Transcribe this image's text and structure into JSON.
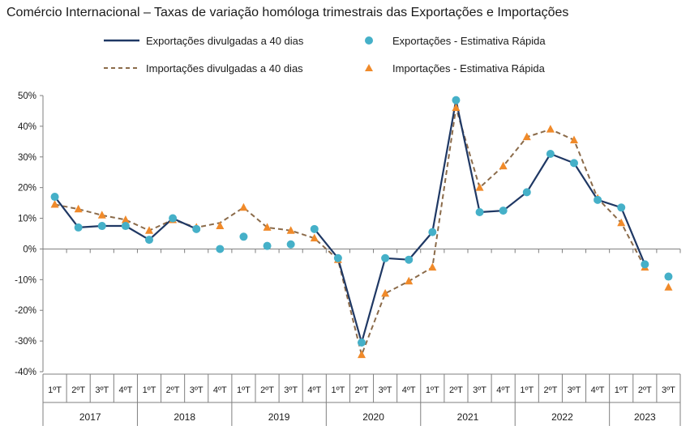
{
  "chart_data": {
    "type": "line",
    "title": "Comércio Internacional – Taxas de variação homóloga trimestrais das Exportações e Importações",
    "colors": {
      "exports_line": "#1f3864",
      "exports_marker": "#45b0c8",
      "imports_line": "#8b6b4a",
      "imports_marker": "#f08a2a"
    },
    "legend": {
      "placement": "top",
      "items": [
        {
          "key": "exp_line",
          "label": "Exportações divulgadas  a 40 dias"
        },
        {
          "key": "exp_est",
          "label": "Exportações - Estimativa Rápida"
        },
        {
          "key": "imp_line",
          "label": "Importações divulgadas a 40 dias"
        },
        {
          "key": "imp_est",
          "label": "Importações - Estimativa Rápida"
        }
      ]
    },
    "ylim": [
      -40,
      50
    ],
    "yticks": [
      {
        "value": 50,
        "label": "50%"
      },
      {
        "value": 40,
        "label": "40%"
      },
      {
        "value": 30,
        "label": "30%"
      },
      {
        "value": 20,
        "label": "20%"
      },
      {
        "value": 10,
        "label": "10%"
      },
      {
        "value": 0,
        "label": "0%"
      },
      {
        "value": -10,
        "label": "-10%"
      },
      {
        "value": -20,
        "label": "-20%"
      },
      {
        "value": -30,
        "label": "-30%"
      },
      {
        "value": -40,
        "label": "-40%"
      }
    ],
    "categories": [
      "1ºT",
      "2ºT",
      "3ºT",
      "4ºT",
      "1ºT",
      "2ºT",
      "3ºT",
      "4ºT",
      "1ºT",
      "2ºT",
      "3ºT",
      "4ºT",
      "1ºT",
      "2ºT",
      "3ºT",
      "4ºT",
      "1ºT",
      "2ºT",
      "3ºT",
      "4ºT",
      "1ºT",
      "2ºT",
      "3ºT",
      "4ºT",
      "1ºT",
      "2ºT",
      "3ºT"
    ],
    "years": [
      {
        "label": "2017",
        "count": 4
      },
      {
        "label": "2018",
        "count": 4
      },
      {
        "label": "2019",
        "count": 4
      },
      {
        "label": "2020",
        "count": 4
      },
      {
        "label": "2021",
        "count": 4
      },
      {
        "label": "2022",
        "count": 4
      },
      {
        "label": "2023",
        "count": 3
      }
    ],
    "series": [
      {
        "name": "Exportações divulgadas  a 40 dias",
        "kind": "line",
        "values": [
          17,
          7,
          7.5,
          7.5,
          3,
          10,
          6.5,
          null,
          null,
          null,
          null,
          6.5,
          -3,
          -30.5,
          -3,
          -3.5,
          5.5,
          48.5,
          12,
          12.5,
          18.5,
          31,
          28,
          16,
          13.5,
          -5,
          null
        ]
      },
      {
        "name": "Exportações - Estimativa Rápida",
        "kind": "marker",
        "values": [
          17,
          7,
          7.5,
          7.5,
          3,
          10,
          6.5,
          0,
          4,
          1,
          1.5,
          6.5,
          -3,
          -30.5,
          -3,
          -3.5,
          5.5,
          48.5,
          12,
          12.5,
          18.5,
          31,
          28,
          16,
          13.5,
          -5,
          -9
        ]
      },
      {
        "name": "Importações divulgadas a 40 dias",
        "kind": "dashed-line",
        "values": [
          14.5,
          13,
          11,
          9.5,
          6,
          9.5,
          7,
          8.5,
          13.5,
          7,
          6,
          3.5,
          -3.5,
          -34.5,
          -14.5,
          -10.5,
          -6,
          46,
          20,
          27,
          36.5,
          39,
          35.5,
          16.5,
          8.5,
          -6,
          null
        ]
      },
      {
        "name": "Importações - Estimativa Rápida",
        "kind": "marker",
        "values": [
          14.5,
          13,
          11,
          9.5,
          6,
          9.5,
          7,
          7.5,
          13.5,
          7,
          6,
          3.5,
          -3.5,
          -34.5,
          -14.5,
          -10.5,
          -6,
          46,
          20,
          27,
          36.5,
          39,
          35.5,
          16.5,
          8.5,
          -6,
          -12.5
        ]
      }
    ],
    "grid": false
  }
}
